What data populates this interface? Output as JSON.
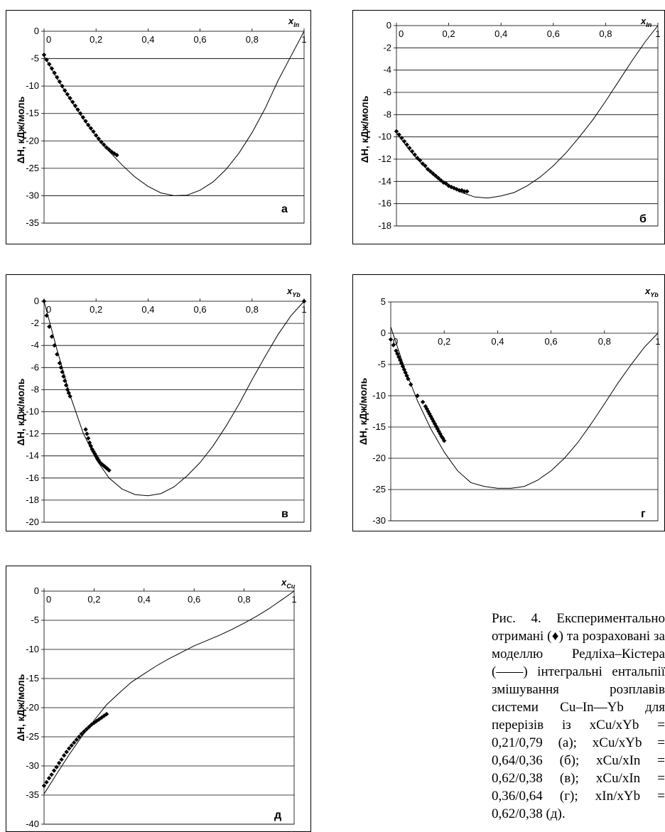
{
  "caption": {
    "text": "Рис. 4. Експериментально отримані (♦) та розраховані за моделлю Редліха–Кістера (——) інтегральні ентальпії змішування розплавів системи Cu–In—Yb для перерізів із xCu/xYb = 0,21/0,79 (а); xCu/xYb = 0,64/0,36 (б); xCu/xIn = 0,62/0,38 (в); xCu/xIn = 0,36/0,64 (г); xIn/xYb = 0,62/0,38 (д)."
  },
  "chart_data": [
    {
      "id": "a",
      "type": "scatter+line",
      "panel_label": "а",
      "ylabel": "ΔH, кДж/моль",
      "xvar": "x",
      "xsub": "In",
      "xlim": [
        0,
        1
      ],
      "ylim": [
        -35,
        0
      ],
      "yticks": [
        0,
        -5,
        -10,
        -15,
        -20,
        -25,
        -30,
        -35
      ],
      "ytick_labels": [
        "0",
        "-5",
        "-10",
        "-15",
        "-20",
        "-25",
        "-30",
        "-35"
      ],
      "xticks": [
        0,
        0.2,
        0.4,
        0.6,
        0.8,
        1
      ],
      "xtick_labels": [
        "0",
        "0,2",
        "0,4",
        "0,6",
        "0,8",
        "1"
      ],
      "model_line": {
        "x": [
          0,
          0.05,
          0.1,
          0.15,
          0.2,
          0.25,
          0.3,
          0.35,
          0.4,
          0.45,
          0.5,
          0.55,
          0.6,
          0.65,
          0.7,
          0.75,
          0.8,
          0.85,
          0.9,
          0.95,
          1
        ],
        "y": [
          -4.5,
          -8.6,
          -12.4,
          -15.9,
          -19.1,
          -21.9,
          -24.4,
          -26.6,
          -28.3,
          -29.5,
          -30,
          -29.9,
          -29,
          -27.5,
          -25.2,
          -22.2,
          -18.5,
          -14.1,
          -9,
          -4.5,
          0
        ]
      },
      "experiment": {
        "x": [
          0,
          0.01,
          0.02,
          0.03,
          0.04,
          0.05,
          0.06,
          0.07,
          0.08,
          0.09,
          0.1,
          0.11,
          0.12,
          0.13,
          0.14,
          0.15,
          0.16,
          0.17,
          0.18,
          0.19,
          0.2,
          0.21,
          0.22,
          0.23,
          0.24,
          0.25,
          0.26,
          0.27,
          0.28
        ],
        "y": [
          -4.3,
          -5.2,
          -6,
          -6.8,
          -7.6,
          -8.4,
          -9.2,
          -10,
          -10.8,
          -11.5,
          -12.2,
          -12.9,
          -13.6,
          -14.3,
          -15,
          -15.7,
          -16.4,
          -17.1,
          -17.7,
          -18.3,
          -19,
          -19.6,
          -20.2,
          -20.7,
          -21.2,
          -21.6,
          -22,
          -22.3,
          -22.6
        ]
      }
    },
    {
      "id": "b",
      "type": "scatter+line",
      "panel_label": "б",
      "ylabel": "ΔH, кДж/моль",
      "xvar": "x",
      "xsub": "In",
      "xlim": [
        0,
        1
      ],
      "ylim": [
        -18,
        0
      ],
      "yticks": [
        0,
        -2,
        -4,
        -6,
        -8,
        -10,
        -12,
        -14,
        -16,
        -18
      ],
      "ytick_labels": [
        "0",
        "-2",
        "-4",
        "-6",
        "-8",
        "-10",
        "-12",
        "-14",
        "-16",
        "-18"
      ],
      "xticks": [
        0,
        0.2,
        0.4,
        0.6,
        0.8,
        1
      ],
      "xtick_labels": [
        "0",
        "0,2",
        "0,4",
        "0,6",
        "0,8",
        "1"
      ],
      "model_line": {
        "x": [
          0,
          0.05,
          0.1,
          0.15,
          0.2,
          0.25,
          0.3,
          0.35,
          0.4,
          0.45,
          0.5,
          0.55,
          0.6,
          0.65,
          0.7,
          0.75,
          0.8,
          0.85,
          0.9,
          0.95,
          1
        ],
        "y": [
          -9.6,
          -11.2,
          -12.5,
          -13.6,
          -14.4,
          -15,
          -15.4,
          -15.5,
          -15.3,
          -15,
          -14.4,
          -13.6,
          -12.6,
          -11.4,
          -10,
          -8.5,
          -6.8,
          -5,
          -3.2,
          -1.5,
          0
        ]
      },
      "experiment": {
        "x": [
          0,
          0.01,
          0.02,
          0.03,
          0.04,
          0.05,
          0.06,
          0.07,
          0.08,
          0.09,
          0.1,
          0.11,
          0.12,
          0.13,
          0.14,
          0.15,
          0.16,
          0.17,
          0.18,
          0.19,
          0.2,
          0.21,
          0.22,
          0.23,
          0.24,
          0.25,
          0.26,
          0.27
        ],
        "y": [
          -9.5,
          -9.8,
          -10.1,
          -10.4,
          -10.7,
          -11,
          -11.3,
          -11.6,
          -11.9,
          -12.1,
          -12.4,
          -12.6,
          -12.9,
          -13.1,
          -13.3,
          -13.5,
          -13.7,
          -13.9,
          -14.1,
          -14.2,
          -14.4,
          -14.5,
          -14.6,
          -14.7,
          -14.8,
          -14.8,
          -14.9,
          -14.9
        ]
      }
    },
    {
      "id": "v",
      "type": "scatter+line",
      "panel_label": "в",
      "ylabel": "ΔH, кДж/моль",
      "xvar": "x",
      "xsub": "Yb",
      "xlim": [
        0,
        1
      ],
      "ylim": [
        -20,
        0
      ],
      "yticks": [
        0,
        -2,
        -4,
        -6,
        -8,
        -10,
        -12,
        -14,
        -16,
        -18,
        -20
      ],
      "ytick_labels": [
        "0",
        "-2",
        "-4",
        "-6",
        "-8",
        "-10",
        "-12",
        "-14",
        "-16",
        "-18",
        "-20"
      ],
      "xticks": [
        0,
        0.2,
        0.4,
        0.6,
        0.8,
        1
      ],
      "xtick_labels": [
        "0",
        "0,2",
        "0,4",
        "0,6",
        "0,8",
        "1"
      ],
      "model_line": {
        "x": [
          0,
          0.05,
          0.1,
          0.15,
          0.2,
          0.25,
          0.3,
          0.35,
          0.4,
          0.45,
          0.5,
          0.55,
          0.6,
          0.65,
          0.7,
          0.75,
          0.8,
          0.85,
          0.9,
          0.95,
          1
        ],
        "y": [
          0,
          -4.4,
          -8.5,
          -11.9,
          -14.3,
          -16,
          -17,
          -17.5,
          -17.6,
          -17.4,
          -16.8,
          -15.8,
          -14.6,
          -13.1,
          -11.3,
          -9.3,
          -7.1,
          -5,
          -3,
          -1.3,
          0
        ]
      },
      "experiment": {
        "x": [
          0,
          0.01,
          0.02,
          0.03,
          0.04,
          0.05,
          0.06,
          0.065,
          0.07,
          0.075,
          0.08,
          0.085,
          0.09,
          0.095,
          0.1,
          0.16,
          0.165,
          0.17,
          0.175,
          0.18,
          0.185,
          0.19,
          0.195,
          0.2,
          0.205,
          0.21,
          0.215,
          0.22,
          0.225,
          0.23,
          0.235,
          0.24,
          0.245,
          0.25,
          1
        ],
        "y": [
          0,
          -1.3,
          -2.3,
          -3.2,
          -4,
          -4.8,
          -5.6,
          -6,
          -6.4,
          -6.8,
          -7.2,
          -7.6,
          -8,
          -8.3,
          -8.6,
          -11.6,
          -12,
          -12.4,
          -12.8,
          -13.1,
          -13.4,
          -13.6,
          -13.8,
          -14,
          -14.2,
          -14.4,
          -14.6,
          -14.7,
          -14.8,
          -14.9,
          -15,
          -15.1,
          -15.2,
          -15.3,
          0
        ]
      }
    },
    {
      "id": "g",
      "type": "scatter+line",
      "panel_label": "г",
      "ylabel": "ΔH, кДж/моль",
      "xvar": "x",
      "xsub": "Yb",
      "xlim": [
        0,
        1
      ],
      "ylim": [
        -30,
        5
      ],
      "yticks": [
        5,
        0,
        -5,
        -10,
        -15,
        -20,
        -25,
        -30
      ],
      "ytick_labels": [
        "5",
        "0",
        "-5",
        "-10",
        "-15",
        "-20",
        "-25",
        "-30"
      ],
      "xticks": [
        0,
        0.2,
        0.4,
        0.6,
        0.8,
        1
      ],
      "xtick_labels": [
        "0",
        "0,2",
        "0,4",
        "0,6",
        "0,8",
        "1"
      ],
      "model_line": {
        "x": [
          0,
          0.05,
          0.1,
          0.15,
          0.2,
          0.25,
          0.3,
          0.35,
          0.4,
          0.45,
          0.5,
          0.55,
          0.6,
          0.65,
          0.7,
          0.75,
          0.8,
          0.85,
          0.9,
          0.95,
          1
        ],
        "y": [
          1,
          -5.4,
          -10.8,
          -15.3,
          -19,
          -22,
          -23.9,
          -24.5,
          -24.8,
          -24.8,
          -24.5,
          -23.5,
          -22,
          -20,
          -17.5,
          -14.5,
          -11.3,
          -8,
          -5,
          -2.2,
          0
        ]
      },
      "experiment": {
        "x": [
          0,
          0.01,
          0.02,
          0.025,
          0.03,
          0.035,
          0.04,
          0.045,
          0.05,
          0.055,
          0.06,
          0.065,
          0.075,
          0.1,
          0.12,
          0.13,
          0.135,
          0.14,
          0.145,
          0.15,
          0.155,
          0.16,
          0.165,
          0.17,
          0.175,
          0.18,
          0.185,
          0.19,
          0.195,
          0.2
        ],
        "y": [
          -1,
          -1.9,
          -2.8,
          -3.3,
          -3.8,
          -4.3,
          -4.8,
          -5.3,
          -5.8,
          -6.3,
          -6.8,
          -7.3,
          -8.2,
          -10,
          -11,
          -11.7,
          -12.1,
          -12.5,
          -12.9,
          -13.3,
          -13.7,
          -14.1,
          -14.5,
          -14.9,
          -15.3,
          -15.7,
          -16.1,
          -16.5,
          -16.8,
          -17.2
        ]
      }
    },
    {
      "id": "d",
      "type": "scatter+line",
      "panel_label": "д",
      "ylabel": "ΔH, кДж/моль",
      "xvar": "x",
      "xsub": "Cu",
      "xlim": [
        0,
        1
      ],
      "ylim": [
        -40,
        0
      ],
      "yticks": [
        0,
        -5,
        -10,
        -15,
        -20,
        -25,
        -30,
        -35,
        -40
      ],
      "ytick_labels": [
        "0",
        "-5",
        "-10",
        "-15",
        "-20",
        "-25",
        "-30",
        "-35",
        "-40"
      ],
      "xticks": [
        0,
        0.2,
        0.4,
        0.6,
        0.8,
        1
      ],
      "xtick_labels": [
        "0",
        "0,2",
        "0,4",
        "0,6",
        "0,8",
        "1"
      ],
      "model_line": {
        "x": [
          0,
          0.05,
          0.1,
          0.15,
          0.2,
          0.25,
          0.3,
          0.35,
          0.4,
          0.45,
          0.5,
          0.55,
          0.6,
          0.65,
          0.7,
          0.75,
          0.8,
          0.85,
          0.9,
          0.95,
          1
        ],
        "y": [
          -34.8,
          -31.4,
          -28.1,
          -25,
          -22.2,
          -19.5,
          -17.5,
          -15.6,
          -14.2,
          -12.8,
          -11.6,
          -10.5,
          -9.4,
          -8.5,
          -7.6,
          -6.6,
          -5.5,
          -4.3,
          -3,
          -1.5,
          0
        ]
      },
      "experiment": {
        "x": [
          0,
          0.01,
          0.02,
          0.03,
          0.04,
          0.05,
          0.06,
          0.07,
          0.08,
          0.09,
          0.1,
          0.11,
          0.12,
          0.13,
          0.14,
          0.15,
          0.16,
          0.17,
          0.18,
          0.19,
          0.2,
          0.21,
          0.22,
          0.23,
          0.24,
          0.25
        ],
        "y": [
          -33.4,
          -32.8,
          -32.1,
          -31.5,
          -30.8,
          -30.2,
          -29.5,
          -28.9,
          -28.2,
          -27.6,
          -27,
          -26.5,
          -26,
          -25.5,
          -25,
          -24.5,
          -24.1,
          -23.7,
          -23.3,
          -22.9,
          -22.6,
          -22.3,
          -22,
          -21.7,
          -21.4,
          -21.1
        ]
      }
    }
  ]
}
